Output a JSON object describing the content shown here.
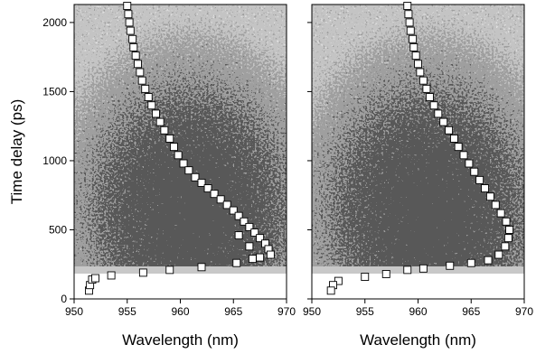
{
  "chart_data": [
    {
      "type": "scatter",
      "y_label": "Time delay (ps)",
      "x_label": "Wavelength (nm)",
      "xlim": [
        950,
        970
      ],
      "ylim": [
        0,
        2130
      ],
      "xticks": [
        950,
        955,
        960,
        965,
        970
      ],
      "yticks": [
        0,
        500,
        1000,
        1500,
        2000
      ],
      "show_ytick_labels": true,
      "marker_color": "#ffffff",
      "x": [
        955.0,
        955.1,
        955.2,
        955.3,
        955.5,
        955.6,
        955.8,
        956.0,
        956.2,
        956.4,
        956.7,
        957.0,
        957.3,
        957.7,
        958.1,
        958.5,
        959.0,
        959.4,
        959.8,
        960.3,
        960.8,
        961.4,
        962.0,
        962.6,
        963.2,
        963.8,
        964.4,
        965.0,
        965.5,
        966.0,
        966.5,
        967.0,
        967.5,
        968.0,
        968.3,
        968.5,
        967.5,
        966.5,
        965.5,
        951.4,
        951.5,
        951.7,
        952.0,
        953.5,
        956.5,
        959.0,
        962.0,
        965.3,
        966.8
      ],
      "values": [
        2120,
        2060,
        2000,
        1940,
        1880,
        1820,
        1760,
        1700,
        1640,
        1580,
        1520,
        1460,
        1400,
        1340,
        1280,
        1220,
        1160,
        1100,
        1040,
        980,
        930,
        880,
        840,
        800,
        760,
        720,
        680,
        640,
        600,
        560,
        520,
        480,
        440,
        400,
        360,
        320,
        300,
        380,
        460,
        60,
        100,
        140,
        150,
        170,
        190,
        210,
        230,
        260,
        290
      ]
    },
    {
      "type": "scatter",
      "x_label": "Wavelength (nm)",
      "xlim": [
        950,
        970
      ],
      "ylim": [
        0,
        2130
      ],
      "xticks": [
        950,
        955,
        960,
        965,
        970
      ],
      "yticks": [
        0,
        500,
        1000,
        1500,
        2000
      ],
      "show_ytick_labels": false,
      "marker_color": "#ffffff",
      "x": [
        959.0,
        959.1,
        959.2,
        959.3,
        959.5,
        959.6,
        959.8,
        960.0,
        960.2,
        960.5,
        960.8,
        961.1,
        961.5,
        961.9,
        962.4,
        962.9,
        963.4,
        963.8,
        964.3,
        964.8,
        965.3,
        965.8,
        966.3,
        966.8,
        967.3,
        967.8,
        968.3,
        968.6,
        968.5,
        968.2,
        967.6,
        966.6,
        965.0,
        963.0,
        960.5,
        959.0,
        957.0,
        955.0,
        952.5,
        952.0,
        951.8
      ],
      "values": [
        2120,
        2060,
        2000,
        1940,
        1880,
        1820,
        1760,
        1700,
        1640,
        1580,
        1520,
        1460,
        1400,
        1340,
        1280,
        1220,
        1160,
        1100,
        1040,
        980,
        920,
        860,
        800,
        740,
        680,
        620,
        560,
        500,
        440,
        380,
        320,
        280,
        260,
        240,
        220,
        210,
        180,
        160,
        130,
        100,
        60
      ]
    }
  ]
}
